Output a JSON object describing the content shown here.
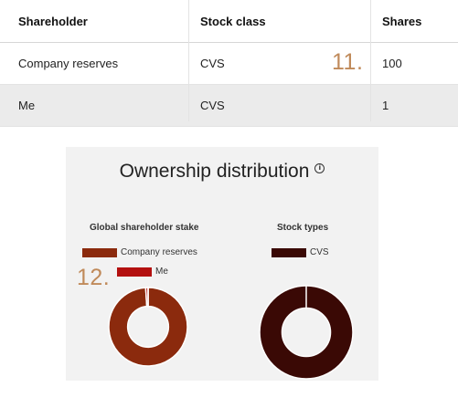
{
  "table": {
    "headers": [
      "Shareholder",
      "Stock class",
      "Shares"
    ],
    "rows": [
      {
        "shareholder": "Company reserves",
        "stock_class": "CVS",
        "shares": "100"
      },
      {
        "shareholder": "Me",
        "stock_class": "CVS",
        "shares": "1"
      }
    ]
  },
  "markers": {
    "first": "11.",
    "second": "12."
  },
  "ownership": {
    "title": "Ownership distribution",
    "info_icon": "info-icon",
    "charts": [
      {
        "heading": "Global shareholder stake",
        "legend": [
          {
            "label": "Company reserves",
            "color": "#8b2a0d"
          },
          {
            "label": "Me",
            "color": "#b3100f"
          }
        ]
      },
      {
        "heading": "Stock types",
        "legend": [
          {
            "label": "CVS",
            "color": "#3a0905"
          }
        ]
      }
    ]
  },
  "chart_data": [
    {
      "type": "pie",
      "title": "Global shareholder stake",
      "categories": [
        "Company reserves",
        "Me"
      ],
      "values": [
        100,
        1
      ],
      "colors": [
        "#8b2a0d",
        "#b3100f"
      ],
      "donut": true
    },
    {
      "type": "pie",
      "title": "Stock types",
      "categories": [
        "CVS"
      ],
      "values": [
        101
      ],
      "colors": [
        "#3a0905"
      ],
      "donut": true
    }
  ]
}
